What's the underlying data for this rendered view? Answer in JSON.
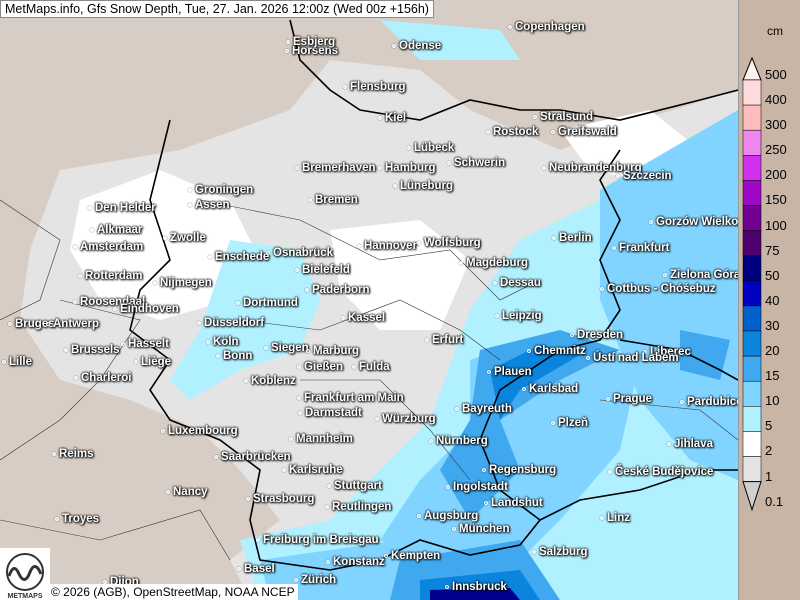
{
  "title": "MetMaps.info, Gfs Snow Depth, Tue, 27. Jan. 2026 12:00z (Wed 00z +156h)",
  "credit": "© 2026 (AGB), OpenStreetMap, NOAA NCEP",
  "logo_text": "METMAPS",
  "legend": {
    "unit": "cm",
    "labels": [
      "500",
      "400",
      "300",
      "250",
      "200",
      "150",
      "100",
      "75",
      "50",
      "40",
      "30",
      "20",
      "15",
      "10",
      "5",
      "2",
      "1",
      "0.1"
    ],
    "colors": [
      "#fff0f2",
      "#ffdadc",
      "#ffbcbc",
      "#ee88ee",
      "#d030f0",
      "#a008c8",
      "#720092",
      "#4e0070",
      "#000080",
      "#0000c0",
      "#0060cc",
      "#0a84dc",
      "#40a8ee",
      "#80d4ff",
      "#b0f0ff",
      "#ffffff",
      "#e4e4e4",
      "#d0d0d0"
    ]
  },
  "cities": [
    "Horsens",
    "Copenhagen",
    "Esbjerg",
    "Odense",
    "Flensburg",
    "Kiel",
    "Stralsund",
    "Rostock",
    "Greifswald",
    "Lübeck",
    "Schwerin",
    "Neubrandenburg",
    "Szczecin",
    "Bremerhaven",
    "Hamburg",
    "Lüneburg",
    "Bremen",
    "Groningen",
    "Assen",
    "Den Helder",
    "Alkmaar",
    "Zwolle",
    "Amsterdam",
    "Enschede",
    "Osnabrück",
    "Hannover",
    "Wolfsburg",
    "Berlin",
    "Frankfurt",
    "Gorzów Wielkopolski",
    "Bielefeld",
    "Magdeburg",
    "Zielona Góra",
    "Rotterdam",
    "Nijmegen",
    "Dessau",
    "Paderborn",
    "Cottbus - Chóśebuz",
    "Roosendaal",
    "Eindhoven",
    "Dortmund",
    "Bruges",
    "Antwerp",
    "Düsseldorf",
    "Kassel",
    "Leipzig",
    "Dresden",
    "Erfurt",
    "Brussels",
    "Hasselt",
    "Köln",
    "Bonn",
    "Siegen",
    "Marburg",
    "Chemnitz",
    "Liberec",
    "Ústí nad Labem",
    "Lille",
    "Liège",
    "Gießen",
    "Fulda",
    "Plauen",
    "Charleroi",
    "Koblenz",
    "Karlsbad",
    "Frankfurt am Main",
    "Prague",
    "Pardubice",
    "Darmstadt",
    "Würzburg",
    "Bayreuth",
    "Plzeň",
    "Luxembourg",
    "Mannheim",
    "Nürnberg",
    "Jihlava",
    "Reims",
    "Saarbrücken",
    "Karlsruhe",
    "Regensburg",
    "České Budějovice",
    "Stuttgart",
    "Ingolstadt",
    "Nancy",
    "Strasbourg",
    "Landshut",
    "Reutlingen",
    "Augsburg",
    "Troyes",
    "Linz",
    "München",
    "Freiburg im Breisgau",
    "Salzburg",
    "Kempten",
    "Konstanz",
    "Basel",
    "Innsbruck",
    "Zürich",
    "Dijon"
  ]
}
